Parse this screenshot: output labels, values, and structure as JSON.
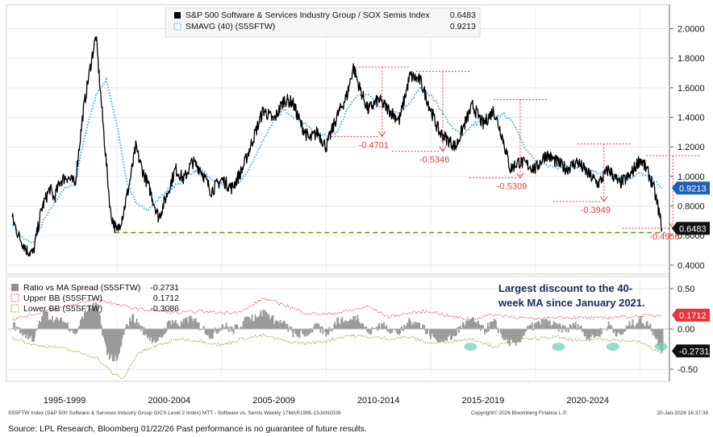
{
  "chart_data": [
    {
      "type": "line",
      "panel": "upper",
      "ylim": [
        0.35,
        2.15
      ],
      "yticks": [
        "2.0000",
        "1.8000",
        "1.6000",
        "1.4000",
        "1.2000",
        "1.0000",
        "0.8000",
        "0.6000",
        "0.4000"
      ],
      "ytick_values": [
        2.0,
        1.8,
        1.6,
        1.4,
        1.2,
        1.0,
        0.8,
        0.6,
        0.4
      ],
      "legend": [
        {
          "name": "S&P 500 Software & Services Industry Group / SOX Semis Index",
          "value": "0.6483",
          "color": "#000000",
          "style": "solid"
        },
        {
          "name": "SMAVG (40) (S5SFTW)",
          "value": "0.9213",
          "color": "#4aa8e0",
          "style": "dotted"
        }
      ],
      "last_value_tags": [
        {
          "value": "0.9213",
          "color": "#1f5fb4"
        },
        {
          "value": "0.6483",
          "color": "#111111"
        }
      ],
      "series": [
        {
          "name": "S&P 500 Software & Services Industry Group / SOX Semis Index",
          "x": [
            1995.0,
            1995.3,
            1995.7,
            1996.0,
            1996.4,
            1996.8,
            1997.0,
            1997.3,
            1997.6,
            1998.0,
            1998.4,
            1998.8,
            1999.0,
            1999.4,
            1999.7,
            2000.0,
            2000.3,
            2000.6,
            2000.9,
            2001.2,
            2001.6,
            2002.0,
            2002.4,
            2002.8,
            2003.2,
            2003.6,
            2004.0,
            2004.5,
            2005.0,
            2005.5,
            2006.0,
            2006.5,
            2007.0,
            2007.5,
            2008.0,
            2008.4,
            2008.8,
            2009.2,
            2009.6,
            2010.0,
            2010.5,
            2011.0,
            2011.3,
            2011.6,
            2012.0,
            2012.5,
            2013.0,
            2013.5,
            2014.0,
            2014.5,
            2015.0,
            2015.4,
            2015.8,
            2016.2,
            2016.6,
            2017.0,
            2017.5,
            2018.0,
            2018.4,
            2018.8,
            2019.2,
            2019.6,
            2020.0,
            2020.5,
            2021.0,
            2021.5,
            2022.0,
            2022.5,
            2023.0,
            2023.5,
            2024.0,
            2024.5,
            2025.0,
            2025.3,
            2025.6,
            2025.85,
            2026.04
          ],
          "values": [
            0.72,
            0.6,
            0.5,
            0.48,
            0.78,
            0.92,
            0.85,
            0.97,
            1.0,
            0.95,
            1.45,
            1.8,
            1.95,
            1.25,
            0.75,
            0.62,
            0.75,
            0.95,
            1.2,
            1.05,
            0.9,
            0.72,
            0.88,
            1.05,
            0.98,
            1.1,
            1.05,
            0.9,
            0.98,
            0.92,
            1.05,
            1.25,
            1.45,
            1.38,
            1.52,
            1.5,
            1.35,
            1.25,
            1.3,
            1.2,
            1.4,
            1.55,
            1.74,
            1.6,
            1.45,
            1.52,
            1.45,
            1.38,
            1.68,
            1.65,
            1.45,
            1.3,
            1.25,
            1.2,
            1.35,
            1.48,
            1.35,
            1.45,
            1.28,
            1.05,
            1.1,
            1.08,
            1.05,
            1.15,
            1.1,
            1.05,
            1.1,
            1.02,
            0.95,
            1.05,
            0.95,
            1.0,
            1.12,
            1.05,
            0.95,
            0.8,
            0.65
          ]
        },
        {
          "name": "SMAVG (40) (S5SFTW)",
          "x": [
            1995.0,
            1995.5,
            1996.0,
            1996.5,
            1997.0,
            1997.5,
            1998.0,
            1998.5,
            1999.0,
            1999.5,
            2000.0,
            2000.5,
            2001.0,
            2001.5,
            2002.0,
            2002.5,
            2003.0,
            2003.5,
            2004.0,
            2004.5,
            2005.0,
            2005.5,
            2006.0,
            2006.5,
            2007.0,
            2007.5,
            2008.0,
            2008.5,
            2009.0,
            2009.5,
            2010.0,
            2010.5,
            2011.0,
            2011.5,
            2012.0,
            2012.5,
            2013.0,
            2013.5,
            2014.0,
            2014.5,
            2015.0,
            2015.5,
            2016.0,
            2016.5,
            2017.0,
            2017.5,
            2018.0,
            2018.5,
            2019.0,
            2019.5,
            2020.0,
            2020.5,
            2021.0,
            2021.5,
            2022.0,
            2022.5,
            2023.0,
            2023.5,
            2024.0,
            2024.5,
            2025.0,
            2025.5,
            2026.04
          ],
          "values": [
            0.68,
            0.58,
            0.55,
            0.7,
            0.82,
            0.92,
            0.95,
            1.3,
            1.55,
            1.65,
            1.35,
            0.95,
            0.8,
            0.78,
            0.85,
            0.92,
            0.95,
            1.02,
            1.05,
            0.98,
            0.95,
            0.92,
            0.98,
            1.1,
            1.25,
            1.38,
            1.45,
            1.4,
            1.35,
            1.3,
            1.28,
            1.3,
            1.45,
            1.55,
            1.55,
            1.48,
            1.45,
            1.42,
            1.5,
            1.6,
            1.55,
            1.45,
            1.33,
            1.28,
            1.35,
            1.38,
            1.4,
            1.42,
            1.35,
            1.2,
            1.1,
            1.08,
            1.06,
            1.08,
            1.06,
            1.05,
            1.02,
            1.03,
            1.0,
            0.99,
            1.02,
            1.0,
            0.92
          ]
        }
      ],
      "support_line": {
        "value": 0.62,
        "color": "#7a8a10",
        "style": "dashed"
      },
      "drawdown_annotations": [
        {
          "label": "-0.4701",
          "peak_x": 2011.4,
          "peak_y": 1.74,
          "trough_y": 1.27
        },
        {
          "label": "-0.5346",
          "peak_x": 2014.3,
          "peak_y": 1.71,
          "trough_y": 1.17
        },
        {
          "label": "-0.5309",
          "peak_x": 2018.0,
          "peak_y": 1.52,
          "trough_y": 0.99
        },
        {
          "label": "-0.3949",
          "peak_x": 2022.0,
          "peak_y": 1.22,
          "trough_y": 0.83
        },
        {
          "label": "-0.4956",
          "peak_x": 2025.3,
          "peak_y": 1.14,
          "trough_y": 0.65
        }
      ]
    },
    {
      "type": "bar",
      "panel": "lower",
      "ylim": [
        -0.62,
        0.62
      ],
      "yticks": [
        "0.50",
        "0.00",
        "-0.50"
      ],
      "ytick_values": [
        0.5,
        0.0,
        -0.5
      ],
      "legend": [
        {
          "name": "Ratio vs MA Spread (S5SFTW)",
          "value": "-0.2731",
          "color": "#8f8f8f",
          "style": "bar"
        },
        {
          "name": "Upper BB (S5SFTW)",
          "value": "0.1712",
          "color": "#e04040",
          "style": "dotted"
        },
        {
          "name": "Lower BB (S5SFTW)",
          "value": "-0.3086",
          "color": "#7aa020",
          "style": "dotted"
        }
      ],
      "last_value_tags": [
        {
          "value": "0.1712",
          "color": "#e8343a"
        },
        {
          "value": "-0.2731",
          "color": "#111111"
        }
      ],
      "series": [
        {
          "name": "Ratio vs MA Spread (S5SFTW)",
          "x": [
            1995.0,
            1995.5,
            1996.0,
            1996.5,
            1997.0,
            1997.5,
            1998.0,
            1998.5,
            1999.0,
            1999.5,
            2000.0,
            2000.3,
            2000.7,
            2001.0,
            2001.5,
            2002.0,
            2002.5,
            2003.0,
            2003.5,
            2004.0,
            2004.5,
            2005.0,
            2005.5,
            2006.0,
            2006.5,
            2007.0,
            2007.5,
            2008.0,
            2008.5,
            2009.0,
            2009.5,
            2010.0,
            2010.5,
            2011.0,
            2011.5,
            2012.0,
            2012.5,
            2013.0,
            2013.5,
            2014.0,
            2014.5,
            2015.0,
            2015.5,
            2016.0,
            2016.5,
            2017.0,
            2017.5,
            2018.0,
            2018.5,
            2019.0,
            2019.5,
            2020.0,
            2020.5,
            2021.0,
            2021.5,
            2022.0,
            2022.5,
            2023.0,
            2023.5,
            2024.0,
            2024.5,
            2025.0,
            2025.5,
            2026.04
          ],
          "values": [
            0.05,
            -0.05,
            -0.12,
            0.2,
            0.1,
            0.08,
            -0.05,
            0.22,
            0.3,
            -0.3,
            -0.4,
            -0.05,
            0.15,
            0.05,
            -0.1,
            -0.15,
            0.1,
            0.05,
            0.12,
            0.02,
            -0.08,
            0.05,
            -0.02,
            0.08,
            0.15,
            0.2,
            0.1,
            0.05,
            -0.08,
            -0.05,
            0.02,
            -0.05,
            0.1,
            0.08,
            0.15,
            -0.05,
            0.05,
            0.0,
            -0.05,
            0.1,
            0.05,
            -0.08,
            -0.12,
            -0.1,
            0.05,
            0.1,
            -0.02,
            0.08,
            -0.12,
            -0.2,
            -0.02,
            0.05,
            0.08,
            0.02,
            0.0,
            0.05,
            -0.1,
            -0.05,
            0.05,
            -0.08,
            0.05,
            0.1,
            0.02,
            -0.2731
          ]
        },
        {
          "name": "Upper BB (S5SFTW)",
          "x": [
            1995.0,
            1996.0,
            1997.0,
            1998.0,
            1999.0,
            2000.0,
            2001.0,
            2002.0,
            2003.0,
            2004.0,
            2005.0,
            2006.0,
            2007.0,
            2008.0,
            2009.0,
            2010.0,
            2011.0,
            2012.0,
            2013.0,
            2014.0,
            2015.0,
            2016.0,
            2017.0,
            2018.0,
            2019.0,
            2020.0,
            2021.0,
            2022.0,
            2023.0,
            2024.0,
            2025.0,
            2026.04
          ],
          "values": [
            0.12,
            0.18,
            0.25,
            0.3,
            0.38,
            0.3,
            0.25,
            0.22,
            0.2,
            0.22,
            0.2,
            0.22,
            0.38,
            0.3,
            0.2,
            0.18,
            0.22,
            0.28,
            0.15,
            0.2,
            0.22,
            0.15,
            0.12,
            0.18,
            0.15,
            0.12,
            0.15,
            0.14,
            0.13,
            0.15,
            0.16,
            0.1712
          ]
        },
        {
          "name": "Lower BB (S5SFTW)",
          "x": [
            1995.0,
            1996.0,
            1997.0,
            1998.0,
            1999.0,
            1999.8,
            2000.3,
            2001.0,
            2002.0,
            2003.0,
            2004.0,
            2005.0,
            2006.0,
            2007.0,
            2008.0,
            2009.0,
            2010.0,
            2011.0,
            2012.0,
            2013.0,
            2014.0,
            2015.0,
            2016.0,
            2017.0,
            2018.0,
            2019.0,
            2020.0,
            2021.0,
            2022.0,
            2023.0,
            2024.0,
            2025.0,
            2026.04
          ],
          "values": [
            -0.1,
            -0.2,
            -0.22,
            -0.28,
            -0.35,
            -0.55,
            -0.62,
            -0.3,
            -0.2,
            -0.12,
            -0.15,
            -0.2,
            -0.12,
            -0.08,
            -0.15,
            -0.18,
            -0.15,
            -0.08,
            -0.1,
            -0.12,
            -0.1,
            -0.18,
            -0.15,
            -0.12,
            -0.22,
            -0.15,
            -0.12,
            -0.1,
            -0.15,
            -0.12,
            -0.14,
            -0.16,
            -0.3086
          ]
        }
      ],
      "highlight_markers_x": [
        2016.9,
        2021.1,
        2023.7,
        2026.0
      ],
      "annotation": "Largest discount to the 40-week MA since January 2021."
    }
  ],
  "x_axis": {
    "xlim": [
      1994.8,
      2026.25
    ],
    "labels": [
      "1995-1999",
      "2000-2004",
      "2005-2009",
      "2010-2014",
      "2015-2019",
      "2020-2024"
    ],
    "label_x": [
      1997.5,
      2002.5,
      2007.5,
      2012.5,
      2017.5,
      2022.5
    ]
  },
  "footer": {
    "left": "S5SFTW Index (S&P 500 Software & Services Industry Group GICS Level 2 Index) MTT - Software vs. Semis Weekly 17MAR1995-15JAN2026",
    "center": "Copyright© 2026 Bloomberg Finance L.P.",
    "right": "20-Jan-2026 16:37:38"
  },
  "source": "Source: LPL Research, Bloomberg 01/22/26 Past performance is no guarantee of future results."
}
